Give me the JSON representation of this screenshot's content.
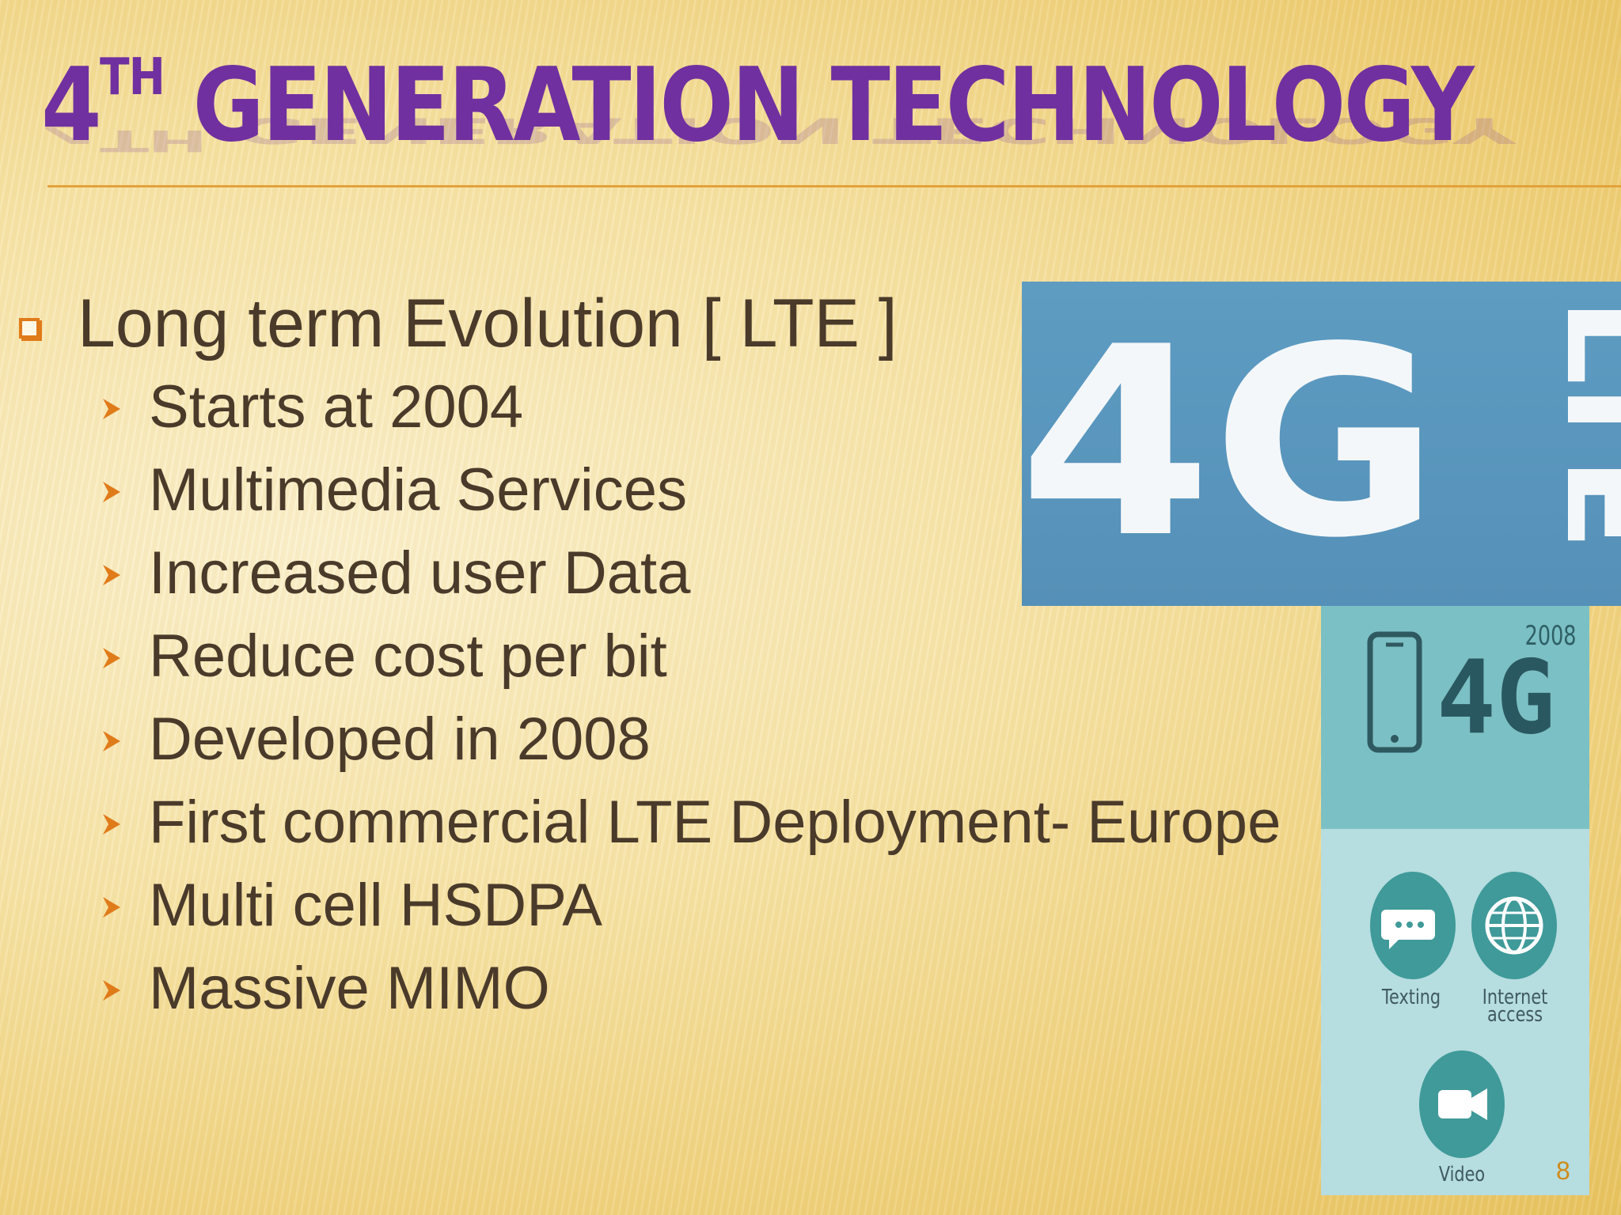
{
  "slide": {
    "title_main": "4",
    "title_sup": "TH",
    "title_rest": " GENERATION TECHNOLOGY",
    "main_bullet": "Long term Evolution [ LTE ]",
    "sub_bullets": [
      "Starts at 2004",
      "Multimedia Services",
      "Increased user Data",
      "Reduce cost per bit",
      "Developed in 2008",
      "First commercial LTE Deployment- Europe",
      "Multi cell HSDPA",
      "Massive MIMO"
    ],
    "page_number": "8"
  },
  "images": {
    "lte_logo": {
      "big_text": "4G",
      "side_text": "LTE"
    },
    "infographic": {
      "year": "2008",
      "label_4g": "4G",
      "icons": [
        {
          "icon": "texting-icon",
          "label": "Texting"
        },
        {
          "icon": "internet-access-icon",
          "label_line1": "Internet",
          "label_line2": "access"
        },
        {
          "icon": "video-icon",
          "label": "Video"
        }
      ]
    }
  },
  "colors": {
    "title": "#7030a0",
    "body_text": "#4a3a2a",
    "bullet_accent": "#e07b1a",
    "rule": "#e3a23a",
    "lte_bg": "#5e9cc2",
    "infographic_teal": "#7bc0c4"
  }
}
